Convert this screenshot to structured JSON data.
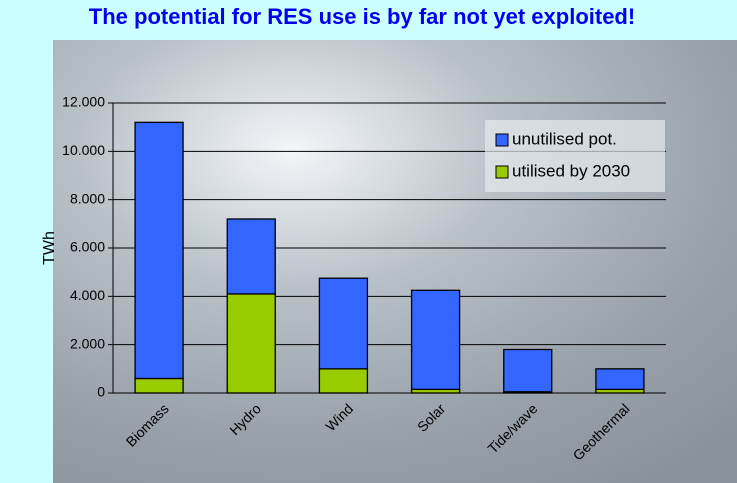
{
  "chart_data": {
    "type": "stacked-bar",
    "title": "The potential for RES use is by far not yet exploited!",
    "y_label": "TWh",
    "categories": [
      "Biomass",
      "Hydro",
      "Wind",
      "Solar",
      "Tide/wave",
      "Geothermal"
    ],
    "series": [
      {
        "name": "utilised by 2030",
        "color": "#99cc00",
        "values": [
          600,
          4100,
          1000,
          150,
          50,
          150
        ]
      },
      {
        "name": "unutilised pot.",
        "color": "#3366ff",
        "values": [
          10600,
          3100,
          3750,
          4100,
          1750,
          850
        ]
      }
    ],
    "ylim": [
      0,
      12000
    ],
    "yticks": [
      0,
      {
        "value": 2000,
        "label": "2.000"
      },
      {
        "value": 4000,
        "label": "4.000"
      },
      {
        "value": 6000,
        "label": "6.000"
      },
      {
        "value": 8000,
        "label": "8.000"
      },
      {
        "value": 10000,
        "label": "10.000"
      },
      {
        "value": 12000,
        "label": "12.000"
      }
    ],
    "grid": true
  }
}
